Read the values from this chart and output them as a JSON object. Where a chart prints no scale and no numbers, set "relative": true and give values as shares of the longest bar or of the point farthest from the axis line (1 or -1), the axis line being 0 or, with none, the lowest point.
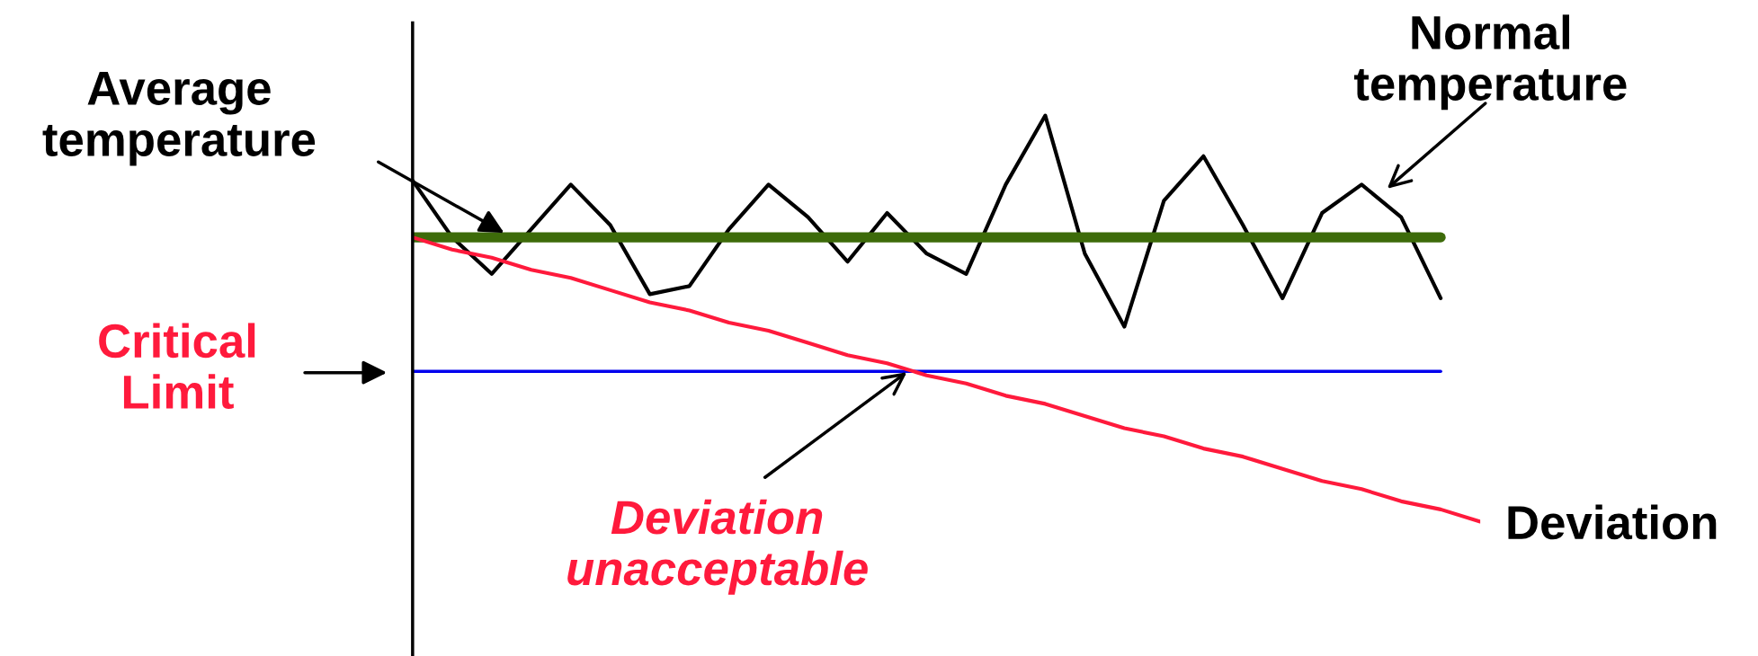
{
  "chart_data": {
    "type": "line",
    "relative": true,
    "categories": [
      null,
      null,
      null,
      null,
      null,
      null,
      null,
      null,
      null,
      null,
      null,
      null,
      null,
      null,
      null,
      null,
      null,
      null,
      null,
      null,
      null,
      null,
      null,
      null,
      null,
      null,
      null,
      null
    ],
    "series": [
      {
        "color": "#000000",
        "values": [
          0.84,
          0.7,
          0.61,
          0.72,
          0.83,
          0.73,
          0.56,
          0.58,
          0.72,
          0.83,
          0.75,
          0.64,
          0.76,
          0.66,
          0.61,
          0.83,
          1.0,
          0.66,
          0.48,
          0.79,
          0.9,
          0.73,
          0.55,
          0.76,
          0.83,
          0.75,
          0.55,
          null
        ]
      },
      {
        "color": "#3d6b0a",
        "values": [
          0.7,
          0.7,
          0.7,
          0.7,
          0.7,
          0.7,
          0.7,
          0.7,
          0.7,
          0.7,
          0.7,
          0.7,
          0.7,
          0.7,
          0.7,
          0.7,
          0.7,
          0.7,
          0.7,
          0.7,
          0.7,
          0.7,
          0.7,
          0.7,
          0.7,
          0.7,
          0.7,
          null
        ]
      },
      {
        "color": "#0000ee",
        "values": [
          0.37,
          0.37,
          0.37,
          0.37,
          0.37,
          0.37,
          0.37,
          0.37,
          0.37,
          0.37,
          0.37,
          0.37,
          0.37,
          0.37,
          0.37,
          0.37,
          0.37,
          0.37,
          0.37,
          0.37,
          0.37,
          0.37,
          0.37,
          0.37,
          0.37,
          0.37,
          0.37,
          null
        ]
      },
      {
        "color": "#ff1a3c",
        "values": [
          0.7,
          0.67,
          0.65,
          0.62,
          0.6,
          0.57,
          0.54,
          0.52,
          0.49,
          0.47,
          0.44,
          0.41,
          0.39,
          0.36,
          0.34,
          0.31,
          0.29,
          0.26,
          0.23,
          0.21,
          0.18,
          0.16,
          0.13,
          0.1,
          0.08,
          0.05,
          0.03,
          0.0
        ]
      }
    ],
    "annotations": [
      "Average temperature",
      "Normal temperature",
      "Critical Limit",
      "Deviation unacceptable",
      "Deviation"
    ]
  }
}
